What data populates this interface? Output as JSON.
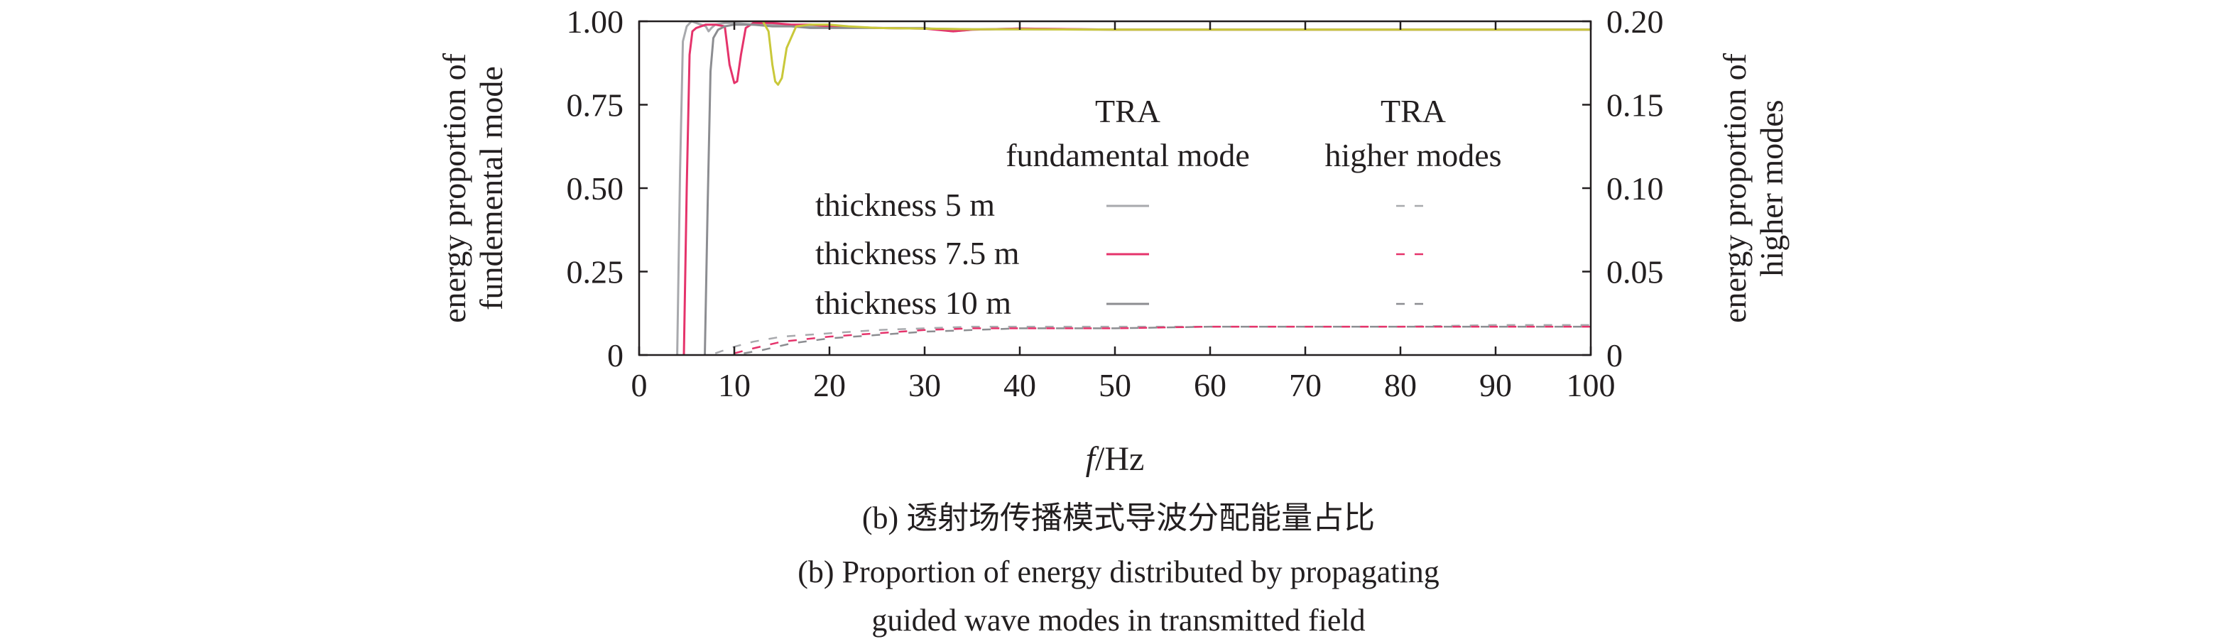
{
  "captions": {
    "zh": "(b) 透射场传播模式导波分配能量占比",
    "en_line1": "(b) Proportion of energy distributed by propagating",
    "en_line2": "guided wave modes in transmitted field"
  },
  "chart_data": {
    "type": "line",
    "xlabel_italic": "f",
    "xlabel_rest": "/Hz",
    "ylabel_left": [
      "energy proportion of",
      "fundemental mode"
    ],
    "ylabel_right": [
      "energy proportion of",
      "higher modes"
    ],
    "xlim": [
      0,
      100
    ],
    "ylim_left": [
      0,
      1.0
    ],
    "ylim_right": [
      0,
      0.2
    ],
    "x_ticks": [
      "0",
      "10",
      "20",
      "30",
      "40",
      "50",
      "60",
      "70",
      "80",
      "90",
      "100"
    ],
    "y_left_ticks": [
      "0",
      "0.25",
      "0.50",
      "0.75",
      "1.00"
    ],
    "y_right_ticks": [
      "0",
      "0.05",
      "0.10",
      "0.15",
      "0.20"
    ],
    "legend": {
      "col1_header": [
        "TRA",
        "fundamental mode"
      ],
      "col2_header": [
        "TRA",
        "higher modes"
      ],
      "rows": [
        "thickness 5 m",
        "thickness 7.5 m",
        "thickness 10 m"
      ]
    },
    "colors": {
      "thickness_5m": "#a8a9ad",
      "thickness_7_5m": "#e5336b",
      "thickness_10m": "#8c8d91",
      "yellow_curve": "#c9c83a"
    },
    "series": [
      {
        "name": "thickness 5 m",
        "axis": "left",
        "style": "solid",
        "color": "#a8a9ad",
        "x": [
          4.0,
          4.3,
          4.6,
          5.0,
          5.5,
          6.0,
          6.5,
          7.0,
          7.3,
          7.6,
          8.0,
          9,
          10,
          12,
          15,
          18,
          20,
          25,
          30,
          33,
          35,
          40,
          50,
          60,
          70,
          80,
          90,
          100
        ],
        "y": [
          0.0,
          0.55,
          0.94,
          0.985,
          1.0,
          0.995,
          0.99,
          0.985,
          0.97,
          0.98,
          0.99,
          0.995,
          0.995,
          0.99,
          0.99,
          0.985,
          0.985,
          0.98,
          0.98,
          0.97,
          0.975,
          0.978,
          0.975,
          0.975,
          0.975,
          0.975,
          0.975,
          0.975
        ]
      },
      {
        "name": "thickness 7.5 m",
        "axis": "left",
        "style": "solid",
        "color": "#e5336b",
        "x": [
          4.7,
          5.0,
          5.3,
          5.6,
          6.0,
          7.0,
          8.0,
          9.0,
          9.5,
          10.0,
          10.3,
          10.7,
          11.2,
          12,
          14,
          16,
          18,
          20,
          25,
          30,
          33,
          35,
          40,
          50,
          60,
          70,
          80,
          90,
          100
        ],
        "y": [
          0.0,
          0.5,
          0.9,
          0.97,
          0.98,
          0.99,
          0.99,
          0.985,
          0.87,
          0.815,
          0.82,
          0.9,
          0.98,
          0.995,
          0.995,
          0.99,
          0.99,
          0.985,
          0.98,
          0.978,
          0.97,
          0.975,
          0.978,
          0.975,
          0.975,
          0.975,
          0.975,
          0.975,
          0.975
        ]
      },
      {
        "name": "thickness 10 m",
        "axis": "left",
        "style": "solid",
        "color": "#8c8d91",
        "x": [
          6.9,
          7.2,
          7.5,
          7.8,
          8.3,
          9.0,
          10,
          12,
          14,
          16,
          18,
          20,
          25,
          30,
          35,
          40,
          50,
          60,
          70,
          80,
          90,
          100
        ],
        "y": [
          0.0,
          0.45,
          0.85,
          0.95,
          0.975,
          0.985,
          0.99,
          0.99,
          0.985,
          0.985,
          0.98,
          0.98,
          0.98,
          0.978,
          0.976,
          0.976,
          0.975,
          0.975,
          0.975,
          0.975,
          0.975,
          0.975
        ]
      },
      {
        "name": "",
        "axis": "left",
        "style": "solid",
        "color": "#c9c83a",
        "x": [
          13.0,
          13.6,
          14.0,
          14.3,
          14.6,
          15.0,
          15.5,
          16.5,
          18,
          20,
          22,
          25,
          30,
          35,
          40,
          50,
          60,
          70,
          80,
          90,
          100
        ],
        "y": [
          1.0,
          0.97,
          0.87,
          0.82,
          0.81,
          0.83,
          0.92,
          0.985,
          0.99,
          0.99,
          0.985,
          0.98,
          0.978,
          0.976,
          0.976,
          0.975,
          0.975,
          0.975,
          0.975,
          0.975,
          0.975
        ]
      },
      {
        "name": "thickness 5 m",
        "axis": "right",
        "style": "dashed",
        "color": "#a8a9ad",
        "x": [
          8,
          10,
          12,
          15,
          20,
          25,
          30,
          35,
          40,
          50,
          60,
          70,
          80,
          90,
          100
        ],
        "y": [
          0.001,
          0.005,
          0.008,
          0.011,
          0.013,
          0.015,
          0.016,
          0.017,
          0.017,
          0.017,
          0.017,
          0.017,
          0.017,
          0.018,
          0.018
        ]
      },
      {
        "name": "thickness 7.5 m",
        "axis": "right",
        "style": "dashed",
        "color": "#e5336b",
        "x": [
          10,
          12,
          15,
          20,
          25,
          30,
          35,
          40,
          50,
          60,
          70,
          80,
          90,
          100
        ],
        "y": [
          0.001,
          0.004,
          0.008,
          0.011,
          0.013,
          0.015,
          0.016,
          0.016,
          0.016,
          0.017,
          0.017,
          0.017,
          0.017,
          0.017
        ]
      },
      {
        "name": "thickness 10 m",
        "axis": "right",
        "style": "dashed",
        "color": "#8c8d91",
        "x": [
          11,
          13,
          16,
          20,
          25,
          30,
          35,
          40,
          50,
          60,
          70,
          80,
          90,
          100
        ],
        "y": [
          0.001,
          0.003,
          0.007,
          0.01,
          0.012,
          0.014,
          0.015,
          0.016,
          0.016,
          0.017,
          0.017,
          0.017,
          0.017,
          0.017
        ]
      }
    ]
  }
}
